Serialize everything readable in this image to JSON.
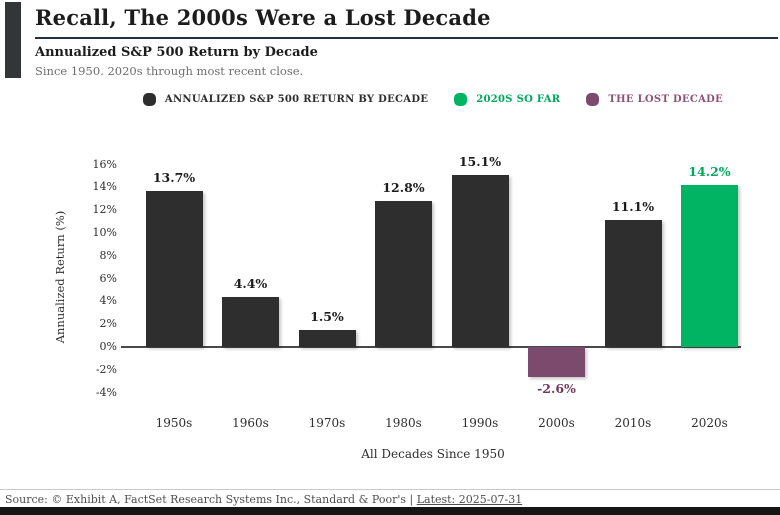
{
  "header": {
    "title": "Recall, The 2000s Were a Lost Decade",
    "subtitle": "Annualized S&P 500 Return by Decade",
    "note": "Since 1950. 2020s through most recent close."
  },
  "legend": {
    "items": [
      {
        "label": "ANNUALIZED S&P 500 RETURN BY DECADE",
        "marker_color": "#2f2e2e",
        "text_color": "#2f2e2e"
      },
      {
        "label": "2020S SO FAR",
        "marker_color": "#00b464",
        "text_color": "#00a85c"
      },
      {
        "label": "THE LOST DECADE",
        "marker_color": "#7c4a6d",
        "text_color": "#8d5278"
      }
    ]
  },
  "chart_data": {
    "type": "bar",
    "title": "Annualized S&P 500 Return by Decade",
    "categories": [
      "1950s",
      "1960s",
      "1970s",
      "1980s",
      "1990s",
      "2000s",
      "2010s",
      "2020s"
    ],
    "values": [
      13.7,
      4.4,
      1.5,
      12.8,
      15.1,
      -2.6,
      11.1,
      14.2
    ],
    "value_labels": [
      "13.7%",
      "4.4%",
      "1.5%",
      "12.8%",
      "15.1%",
      "-2.6%",
      "11.1%",
      "14.2%"
    ],
    "bar_colors": [
      "#2f2e2e",
      "#2f2e2e",
      "#2f2e2e",
      "#2f2e2e",
      "#2f2e2e",
      "#7c4a6d",
      "#2f2e2e",
      "#00b464"
    ],
    "value_label_colors": [
      "#1c1c1c",
      "#1c1c1c",
      "#1c1c1c",
      "#1c1c1c",
      "#1c1c1c",
      "#71395d",
      "#1c1c1c",
      "#00a85c"
    ],
    "xlabel": "All Decades Since 1950",
    "ylabel": "Annualized Return (%)",
    "ylim": [
      -4,
      16
    ],
    "ytick_values": [
      16,
      14,
      12,
      10,
      8,
      6,
      4,
      2,
      0,
      -2,
      -4
    ],
    "ytick_labels": [
      "16%",
      "14%",
      "12%",
      "10%",
      "8%",
      "6%",
      "4%",
      "2%",
      "0%",
      "-2%",
      "-4%"
    ],
    "grid": false,
    "legend_position": "top"
  },
  "footer": {
    "source_prefix": "Source: © Exhibit A, FactSet Research Systems Inc., Standard & Poor's | ",
    "latest_link": "Latest: 2025-07-31"
  }
}
